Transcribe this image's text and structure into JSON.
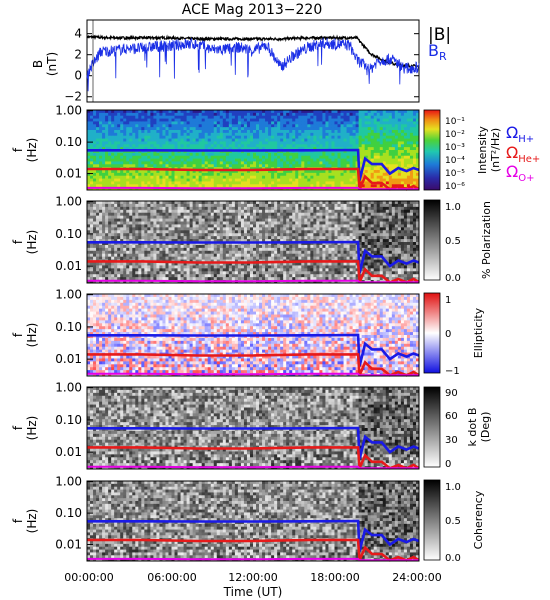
{
  "title": "ACE Mag 2013−220",
  "colors": {
    "bmag": "#000000",
    "br": "#1a2ee6",
    "omega_h": "#1a1ae6",
    "omega_he": "#e61a1a",
    "omega_o": "#e600e6"
  },
  "chart_data": [
    {
      "type": "line",
      "panel": "magnetic-field",
      "ylabel": "B",
      "yunit": "(nT)",
      "ylim": [
        -2.5,
        5.3
      ],
      "yticks": [
        "−2",
        "0",
        "2",
        "4"
      ],
      "legend": [
        "|B|",
        "B"
      ],
      "legend_sub": "R",
      "legend_placement": "right",
      "series": [
        {
          "name": "|B|",
          "color": "black",
          "x": [
            0,
            2,
            4,
            6,
            8,
            10,
            12,
            14,
            16,
            18,
            19.5,
            20.5,
            21.5,
            22.5,
            24
          ],
          "values": [
            3.7,
            3.6,
            3.6,
            3.6,
            3.5,
            3.5,
            3.5,
            3.5,
            3.6,
            3.6,
            3.6,
            2.1,
            1.4,
            1.0,
            0.9
          ]
        },
        {
          "name": "B",
          "sub": "R",
          "color": "blue",
          "x": [
            0,
            1,
            2,
            3,
            4,
            5,
            6,
            7,
            8,
            9,
            10,
            11,
            12,
            13,
            14,
            15,
            16,
            17,
            18,
            19,
            19.5,
            20.5,
            21,
            22,
            23,
            24
          ],
          "values": [
            0.2,
            2.3,
            2.4,
            2.6,
            2.6,
            2.8,
            2.8,
            3.0,
            3.0,
            2.5,
            2.5,
            2.7,
            2.4,
            2.9,
            0.8,
            2.0,
            2.7,
            3.1,
            3.0,
            2.9,
            1.5,
            0.6,
            1.4,
            1.6,
            0.7,
            0.8
          ]
        }
      ]
    },
    {
      "type": "heatmap",
      "panel": "intensity",
      "ylabel": "f",
      "yunit": "(Hz)",
      "yticks": [
        "1.00",
        "0.10",
        "0.01"
      ],
      "colorbar_label": "Intensity",
      "colorbar_unit": "(nT²/Hz)",
      "colorbar_ticks": [
        "10⁻¹",
        "10⁻²",
        "10⁻³",
        "10⁻⁴",
        "10⁻⁵",
        "10⁻⁶"
      ],
      "curve_legend": [
        {
          "label": "Ω",
          "sub": "H+",
          "color": "blue"
        },
        {
          "label": "Ω",
          "sub": "He+",
          "color": "red"
        },
        {
          "label": "Ω",
          "sub": "O+",
          "color": "magenta"
        }
      ]
    },
    {
      "type": "heatmap",
      "panel": "polarization",
      "ylabel": "f",
      "yunit": "(Hz)",
      "yticks": [
        "1.00",
        "0.10",
        "0.01"
      ],
      "colorbar_label": "% Polarization",
      "colorbar_unit": "",
      "colorbar_ticks": [
        "1.0",
        "0.5",
        "0.0"
      ]
    },
    {
      "type": "heatmap",
      "panel": "ellipticity",
      "ylabel": "f",
      "yunit": "(Hz)",
      "yticks": [
        "1.00",
        "0.10",
        "0.01"
      ],
      "colorbar_label": "Ellipticity",
      "colorbar_unit": "",
      "colorbar_ticks": [
        "1",
        "0",
        "−1"
      ]
    },
    {
      "type": "heatmap",
      "panel": "k-dot-b",
      "ylabel": "f",
      "yunit": "(Hz)",
      "yticks": [
        "1.00",
        "0.10",
        "0.01"
      ],
      "colorbar_label": "k dot B",
      "colorbar_unit": "(Deg)",
      "colorbar_ticks": [
        "90",
        "60",
        "30",
        "0"
      ]
    },
    {
      "type": "heatmap",
      "panel": "coherency",
      "ylabel": "f",
      "yunit": "(Hz)",
      "yticks": [
        "1.00",
        "0.10",
        "0.01"
      ],
      "colorbar_label": "Coherency",
      "colorbar_unit": "",
      "colorbar_ticks": [
        "1.0",
        "0.5",
        "0.0"
      ]
    }
  ],
  "xaxis": {
    "label": "Time (UT)",
    "ticks": [
      "00:00:00",
      "06:00:00",
      "12:00:00",
      "18:00:00",
      "24:00:00"
    ],
    "xlim_hours": [
      0,
      24
    ]
  },
  "gyrofrequency_curves": {
    "x_hours": [
      0,
      4,
      8,
      12,
      16,
      19.6,
      19.7,
      20.1,
      20.6,
      21.3,
      21.9,
      22.5,
      23.1,
      23.6,
      24
    ],
    "H+": [
      0.055,
      0.055,
      0.054,
      0.054,
      0.055,
      0.056,
      0.006,
      0.03,
      0.02,
      0.02,
      0.01,
      0.015,
      0.012,
      0.015,
      0.013
    ],
    "He+": [
      0.014,
      0.014,
      0.013,
      0.013,
      0.014,
      0.014,
      0.0016,
      0.008,
      0.005,
      0.005,
      0.0025,
      0.004,
      0.003,
      0.004,
      0.003
    ],
    "O+": [
      0.0035,
      0.0035,
      0.0034,
      0.0034,
      0.0035,
      0.0035,
      0.0004,
      0.002,
      0.0012,
      0.0012,
      0.0006,
      0.001,
      0.0008,
      0.001,
      0.0008
    ]
  }
}
